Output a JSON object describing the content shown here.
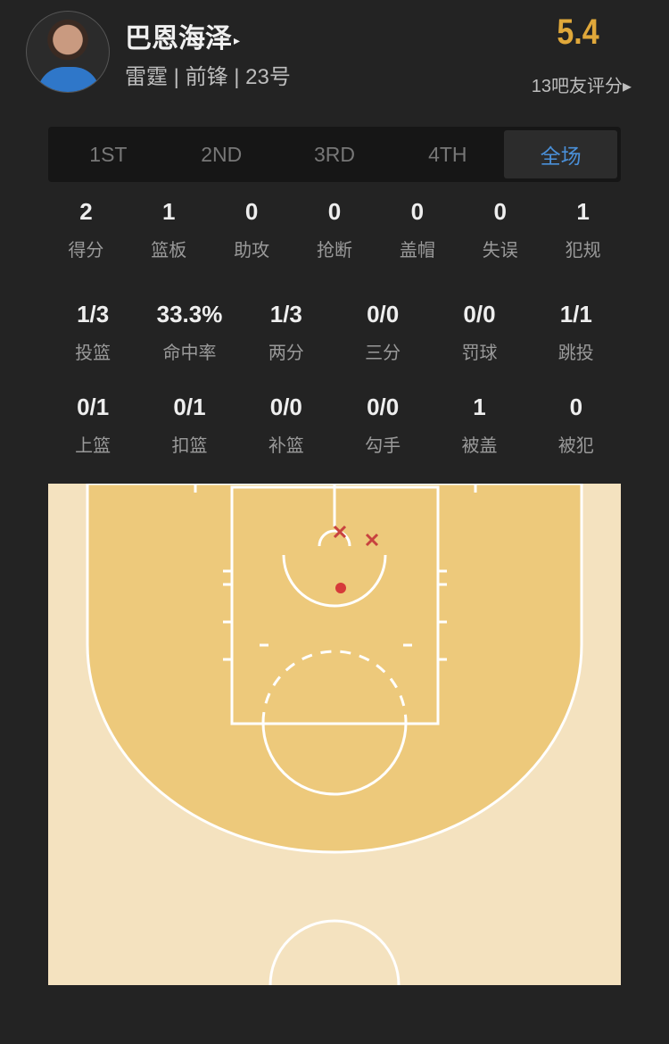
{
  "player": {
    "name": "巴恩海泽",
    "name_arrow": "▸",
    "info": "雷霆 | 前锋 | 23号",
    "rating": "5.4",
    "votes": "13吧友评分▸"
  },
  "tabs": [
    {
      "label": "1ST"
    },
    {
      "label": "2ND"
    },
    {
      "label": "3RD"
    },
    {
      "label": "4TH"
    },
    {
      "label": "全场",
      "active": true
    }
  ],
  "stats_basic": [
    {
      "value": "2",
      "label": "得分"
    },
    {
      "value": "1",
      "label": "篮板"
    },
    {
      "value": "0",
      "label": "助攻"
    },
    {
      "value": "0",
      "label": "抢断"
    },
    {
      "value": "0",
      "label": "盖帽"
    },
    {
      "value": "0",
      "label": "失误"
    },
    {
      "value": "1",
      "label": "犯规"
    }
  ],
  "stats_shooting": [
    {
      "value": "1/3",
      "label": "投篮"
    },
    {
      "value": "33.3%",
      "label": "命中率"
    },
    {
      "value": "1/3",
      "label": "两分"
    },
    {
      "value": "0/0",
      "label": "三分"
    },
    {
      "value": "0/0",
      "label": "罚球"
    },
    {
      "value": "1/1",
      "label": "跳投"
    }
  ],
  "stats_types": [
    {
      "value": "0/1",
      "label": "上篮"
    },
    {
      "value": "0/1",
      "label": "扣篮"
    },
    {
      "value": "0/0",
      "label": "补篮"
    },
    {
      "value": "0/0",
      "label": "勾手"
    },
    {
      "value": "1",
      "label": "被盖"
    },
    {
      "value": "0",
      "label": "被犯"
    }
  ],
  "shot_chart": {
    "made_color": "#D63A3A",
    "missed_color": "#C8423F",
    "shots": [
      {
        "result": "missed"
      },
      {
        "result": "missed"
      },
      {
        "result": "made"
      }
    ]
  },
  "colors": {
    "accent": "#4A90D9",
    "rating": "#E0A83A",
    "court_inner": "#EDC97B",
    "court_outer": "#F4E2BF"
  }
}
